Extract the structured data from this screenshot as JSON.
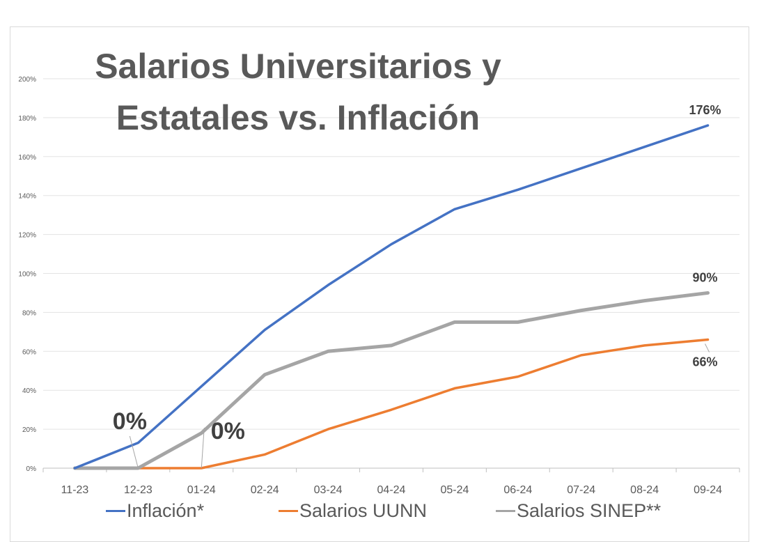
{
  "chart_data": {
    "type": "line",
    "title": "Salarios Universitarios y Estatales vs. Inflación",
    "categories": [
      "11-23",
      "12-23",
      "01-24",
      "02-24",
      "03-24",
      "04-24",
      "05-24",
      "06-24",
      "07-24",
      "08-24",
      "09-24"
    ],
    "y_ticks": [
      "0%",
      "20%",
      "40%",
      "60%",
      "80%",
      "100%",
      "120%",
      "140%",
      "160%",
      "180%",
      "200%"
    ],
    "ylim": [
      0,
      200
    ],
    "grid": true,
    "legend_position": "bottom",
    "series": [
      {
        "name": "Inflación*",
        "color": "#4472c4",
        "values": [
          0,
          13,
          42,
          71,
          94,
          115,
          133,
          143,
          154,
          165,
          176
        ],
        "end_label": "176%"
      },
      {
        "name": "Salarios UUNN",
        "color": "#ed7d31",
        "values": [
          0,
          0,
          0,
          7,
          20,
          30,
          41,
          47,
          58,
          63,
          66
        ],
        "end_label": "66%"
      },
      {
        "name": "Salarios SINEP**",
        "color": "#a5a5a5",
        "values": [
          0,
          0,
          18,
          48,
          60,
          63,
          75,
          75,
          81,
          86,
          90
        ],
        "end_label": "90%"
      }
    ],
    "annotations": [
      {
        "text": "0%",
        "x": "12-23",
        "y": 0
      },
      {
        "text": "0%",
        "x": "01-24",
        "y": 0
      }
    ]
  }
}
